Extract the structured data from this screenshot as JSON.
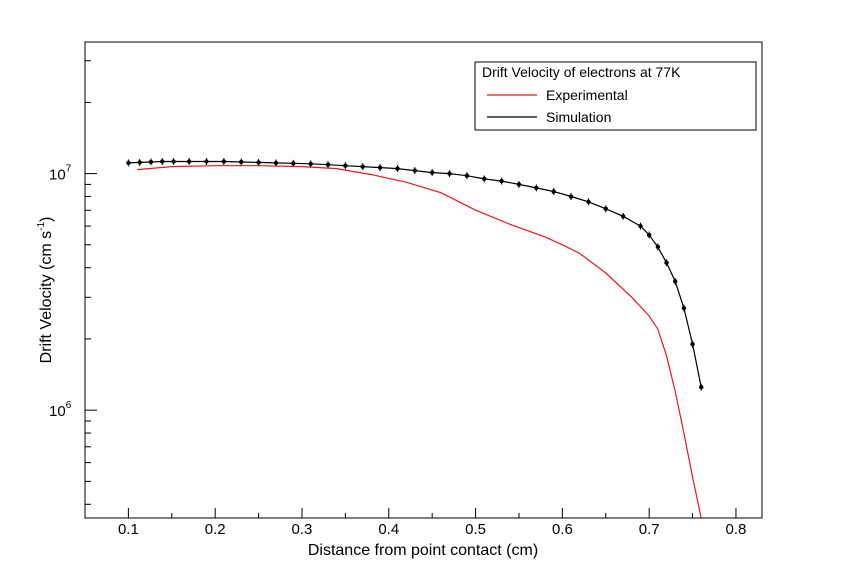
{
  "chart_data": {
    "type": "line",
    "title": "",
    "xlabel": "Distance from point contact (cm)",
    "ylabel_main": "Drift Velocity (cm s",
    "ylabel_sup": "-1",
    "ylabel_close": ")",
    "xlim": [
      0.05,
      0.83
    ],
    "ylim": [
      350000,
      36000000
    ],
    "yscale": "log",
    "grid": false,
    "x_ticks": [
      0.1,
      0.2,
      0.3,
      0.4,
      0.5,
      0.6,
      0.7,
      0.8
    ],
    "x_tick_labels": [
      "0.1",
      "0.2",
      "0.3",
      "0.4",
      "0.5",
      "0.6",
      "0.7",
      "0.8"
    ],
    "y_major_ticks": [
      {
        "value": 1000000,
        "base": "10",
        "exp": "6"
      },
      {
        "value": 10000000,
        "base": "10",
        "exp": "7"
      }
    ],
    "legend": {
      "placement": "top-right",
      "header": "Drift Velocity of electrons at 77K",
      "entries": [
        "Experimental",
        "Simulation"
      ]
    },
    "series": [
      {
        "name": "Experimental",
        "color": "#e8181c",
        "markers": false,
        "x": [
          0.11,
          0.15,
          0.2,
          0.25,
          0.3,
          0.34,
          0.38,
          0.42,
          0.46,
          0.5,
          0.54,
          0.58,
          0.6,
          0.62,
          0.65,
          0.68,
          0.7,
          0.71,
          0.72,
          0.73,
          0.74,
          0.75,
          0.76
        ],
        "y": [
          10400000,
          10700000,
          10800000,
          10800000,
          10700000,
          10500000,
          9900000,
          9200000,
          8300000,
          7000000,
          6100000,
          5400000,
          5000000,
          4600000,
          3800000,
          3000000,
          2500000,
          2200000,
          1700000,
          1200000,
          800000,
          520000,
          350000
        ]
      },
      {
        "name": "Simulation",
        "color": "#000000",
        "markers": true,
        "x": [
          0.1,
          0.113,
          0.126,
          0.139,
          0.152,
          0.17,
          0.19,
          0.21,
          0.23,
          0.25,
          0.27,
          0.29,
          0.31,
          0.33,
          0.35,
          0.37,
          0.39,
          0.41,
          0.43,
          0.45,
          0.47,
          0.49,
          0.51,
          0.53,
          0.55,
          0.57,
          0.59,
          0.61,
          0.63,
          0.65,
          0.67,
          0.69,
          0.7,
          0.71,
          0.72,
          0.73,
          0.74,
          0.75,
          0.76
        ],
        "y": [
          11100000,
          11150000,
          11200000,
          11250000,
          11250000,
          11250000,
          11250000,
          11250000,
          11200000,
          11150000,
          11100000,
          11050000,
          11000000,
          10900000,
          10800000,
          10700000,
          10600000,
          10500000,
          10300000,
          10100000,
          10000000,
          9800000,
          9500000,
          9300000,
          9000000,
          8700000,
          8400000,
          8000000,
          7600000,
          7100000,
          6600000,
          6000000,
          5500000,
          4900000,
          4200000,
          3500000,
          2700000,
          1900000,
          1250000
        ]
      }
    ]
  }
}
